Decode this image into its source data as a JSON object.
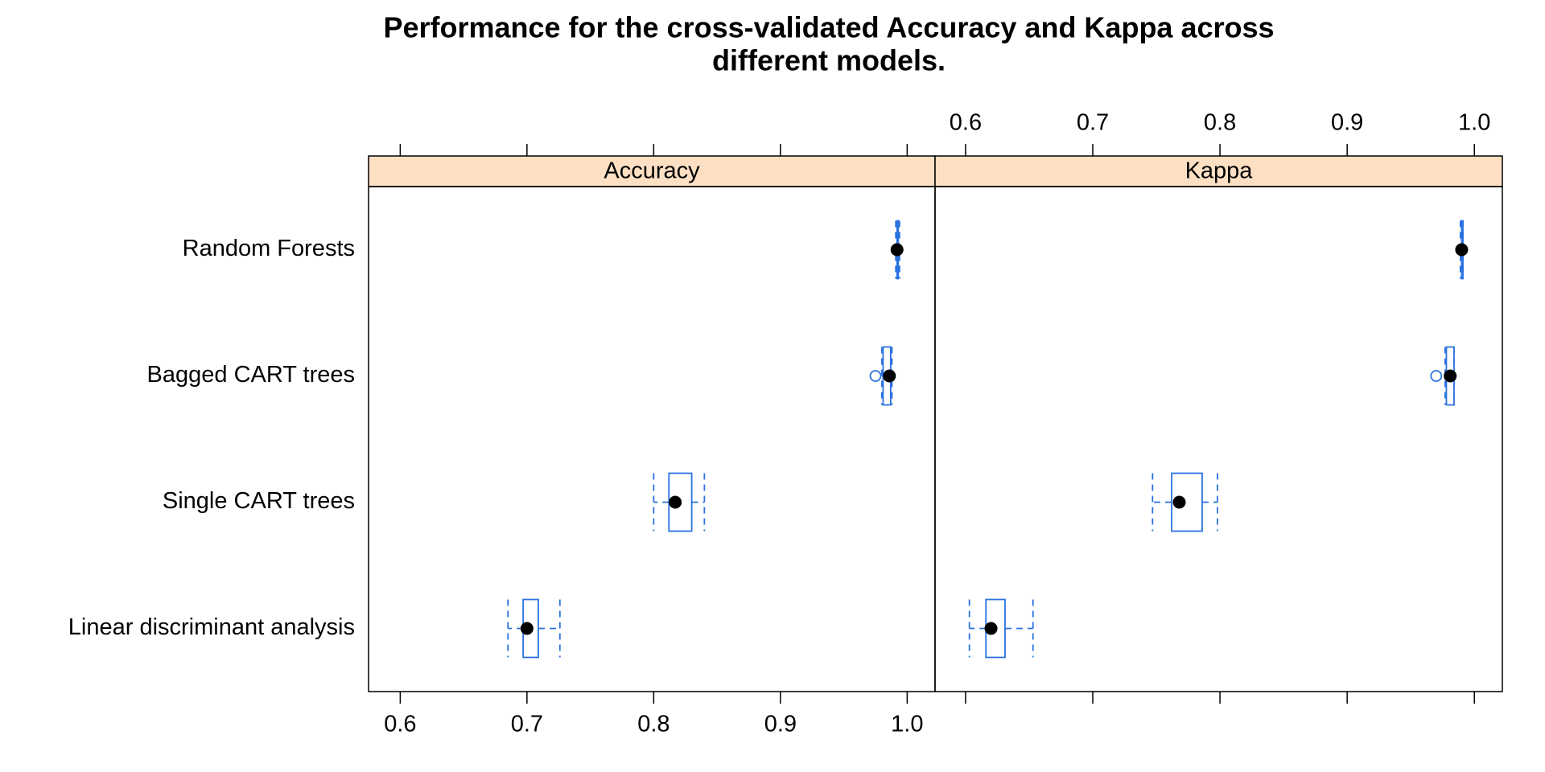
{
  "title": [
    "Performance for the cross-validated Accuracy and Kappa across",
    "different models."
  ],
  "chart_data": [
    {
      "type": "box",
      "title": "Accuracy",
      "tick_labels": "bottom",
      "color": "#2a72e0",
      "median_color": "#000000",
      "strip_color": "#fde0c4",
      "categories": [
        "Random Forests",
        "Bagged CART trees",
        "Single CART trees",
        "Linear discriminant analysis"
      ],
      "boxes": [
        {
          "whislo": 0.991,
          "q1": 0.992,
          "median": 0.992,
          "q3": 0.993,
          "whishi": 0.994,
          "outliers": []
        },
        {
          "whislo": 0.98,
          "q1": 0.981,
          "median": 0.986,
          "q3": 0.987,
          "whishi": 0.988,
          "outliers": [
            0.975
          ]
        },
        {
          "whislo": 0.8,
          "q1": 0.812,
          "median": 0.817,
          "q3": 0.83,
          "whishi": 0.84,
          "outliers": []
        },
        {
          "whislo": 0.685,
          "q1": 0.697,
          "median": 0.7,
          "q3": 0.709,
          "whishi": 0.726,
          "outliers": []
        }
      ],
      "xlim": [
        0.575,
        1.022
      ],
      "xticks": [
        0.6,
        0.7,
        0.8,
        0.9,
        {
          "value": 1,
          "label": "1.0"
        }
      ]
    },
    {
      "type": "box",
      "title": "Kappa",
      "tick_labels": "top",
      "color": "#2a72e0",
      "median_color": "#000000",
      "strip_color": "#fde0c4",
      "boxes": [
        {
          "whislo": 0.989,
          "q1": 0.99,
          "median": 0.99,
          "q3": 0.991,
          "whishi": 0.991,
          "outliers": []
        },
        {
          "whislo": 0.977,
          "q1": 0.978,
          "median": 0.981,
          "q3": 0.984,
          "whishi": 0.984,
          "outliers": [
            0.97
          ]
        },
        {
          "whislo": 0.747,
          "q1": 0.762,
          "median": 0.768,
          "q3": 0.786,
          "whishi": 0.798,
          "outliers": []
        },
        {
          "whislo": 0.603,
          "q1": 0.616,
          "median": 0.62,
          "q3": 0.631,
          "whishi": 0.653,
          "outliers": []
        }
      ],
      "xlim": [
        0.576,
        1.022
      ],
      "xticks": [
        0.6,
        0.7,
        0.8,
        0.9,
        {
          "value": 1,
          "label": "1.0"
        }
      ]
    }
  ]
}
